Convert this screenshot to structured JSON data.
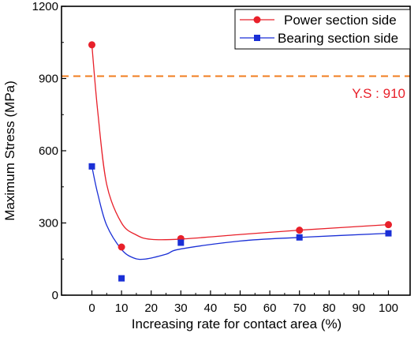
{
  "chart_data": {
    "type": "scatter",
    "xlabel": "Increasing rate for contact area (%)",
    "ylabel": "Maximum Stress (MPa)",
    "x_ticks": [
      "0",
      "10",
      "20",
      "30",
      "40",
      "50",
      "60",
      "70",
      "80",
      "90",
      "100"
    ],
    "y_ticks": [
      "0",
      "300",
      "600",
      "900",
      "1200"
    ],
    "ylim": [
      0,
      1200
    ],
    "grid": false,
    "legend_position": "top-right",
    "series": [
      {
        "name": "Power section side",
        "color": "#e8202a",
        "marker": "circle",
        "x": [
          0,
          10,
          30,
          70,
          100
        ],
        "values": [
          1040,
          200,
          235,
          270,
          293
        ]
      },
      {
        "name": "Bearing section side",
        "color": "#1a2fd6",
        "marker": "square",
        "x": [
          0,
          10,
          30,
          70,
          100
        ],
        "values": [
          535,
          70,
          218,
          240,
          257
        ]
      }
    ],
    "reference_line": {
      "value": 910,
      "label": "Y.S : 910",
      "color": "#f07d1f",
      "style": "dashed"
    }
  }
}
